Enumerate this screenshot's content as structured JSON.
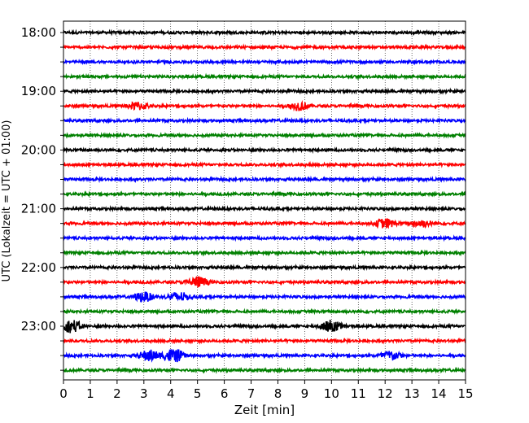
{
  "chart_data": {
    "type": "line",
    "title": "",
    "xlabel": "Zeit  [min]",
    "ylabel": "UTC (Lokalzeit = UTC + 01:00)",
    "xlim": [
      0,
      15
    ],
    "x_ticks": [
      "0",
      "1",
      "2",
      "3",
      "4",
      "5",
      "6",
      "7",
      "8",
      "9",
      "10",
      "11",
      "12",
      "13",
      "14",
      "15"
    ],
    "grid": "vertical dotted lines at each minute",
    "y_tick_labels": [
      "18:00",
      "19:00",
      "20:00",
      "21:00",
      "22:00",
      "23:00"
    ],
    "trace_interval_minutes": 15,
    "trace_start_times": [
      "18:00",
      "18:15",
      "18:30",
      "18:45",
      "19:00",
      "19:15",
      "19:30",
      "19:45",
      "20:00",
      "20:15",
      "20:30",
      "20:45",
      "21:00",
      "21:15",
      "21:30",
      "21:45",
      "22:00",
      "22:15",
      "22:30",
      "22:45",
      "23:00",
      "23:15",
      "23:30",
      "23:45"
    ],
    "color_cycle": [
      "#000000",
      "#ff0000",
      "#0000ff",
      "#008000"
    ],
    "events": [
      {
        "trace": "19:15",
        "minute": 2.8,
        "amplitude": 0.5
      },
      {
        "trace": "19:15",
        "minute": 8.8,
        "amplitude": 0.5
      },
      {
        "trace": "21:15",
        "minute": 12.0,
        "amplitude": 0.6
      },
      {
        "trace": "21:15",
        "minute": 13.3,
        "amplitude": 0.5
      },
      {
        "trace": "22:15",
        "minute": 5.0,
        "amplitude": 0.7
      },
      {
        "trace": "22:30",
        "minute": 3.0,
        "amplitude": 0.6
      },
      {
        "trace": "22:30",
        "minute": 4.3,
        "amplitude": 0.6
      },
      {
        "trace": "23:00",
        "minute": 0.3,
        "amplitude": 0.8
      },
      {
        "trace": "23:00",
        "minute": 10.0,
        "amplitude": 0.8
      },
      {
        "trace": "23:30",
        "minute": 3.2,
        "amplitude": 0.7
      },
      {
        "trace": "23:30",
        "minute": 4.1,
        "amplitude": 0.9
      },
      {
        "trace": "23:30",
        "minute": 12.2,
        "amplitude": 0.6
      }
    ]
  }
}
